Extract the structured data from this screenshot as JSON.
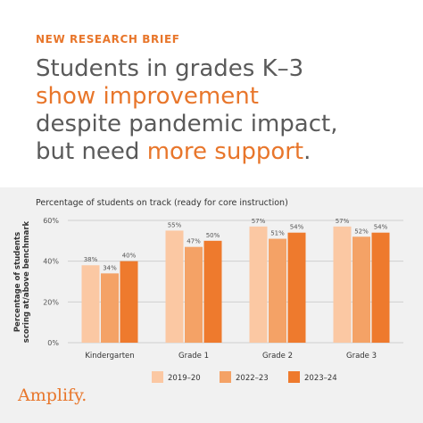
{
  "header": {
    "eyebrow": "NEW RESEARCH BRIEF",
    "line1": "Students in grades K–3",
    "line2_accent": "show improvement",
    "line3": "despite pandemic impact,",
    "line4_prefix": "but need ",
    "line4_accent": "more support",
    "line4_suffix": "."
  },
  "brand": "Amplify.",
  "colors": {
    "accent": "#e8762b",
    "series_2019": "#fbc8a3",
    "series_2022": "#f4a266",
    "series_2023": "#ee7a2d"
  },
  "chart_data": {
    "type": "bar",
    "title": "Percentage of students on track (ready for core instruction)",
    "ylabel_line1": "Percentage of students",
    "ylabel_line2": "scoring at/above benchmark",
    "xlabel": "",
    "categories": [
      "Kindergarten",
      "Grade 1",
      "Grade 2",
      "Grade 3"
    ],
    "series": [
      {
        "name": "2019–20",
        "values": [
          38,
          55,
          57,
          57
        ],
        "labels": [
          "38%",
          "55%",
          "57%",
          "57%"
        ],
        "color": "#fbc8a3"
      },
      {
        "name": "2022–23",
        "values": [
          34,
          47,
          51,
          52
        ],
        "labels": [
          "34%",
          "47%",
          "51%",
          "52%"
        ],
        "color": "#f4a266"
      },
      {
        "name": "2023–24",
        "values": [
          40,
          50,
          54,
          54
        ],
        "labels": [
          "40%",
          "50%",
          "54%",
          "54%"
        ],
        "color": "#ee7a2d"
      }
    ],
    "yticks": [
      {
        "value": 0,
        "label": "0%"
      },
      {
        "value": 20,
        "label": "20%"
      },
      {
        "value": 40,
        "label": "40%"
      },
      {
        "value": 60,
        "label": "60%"
      }
    ],
    "ylim": [
      0,
      60
    ],
    "grid": true,
    "legend_position": "bottom"
  }
}
